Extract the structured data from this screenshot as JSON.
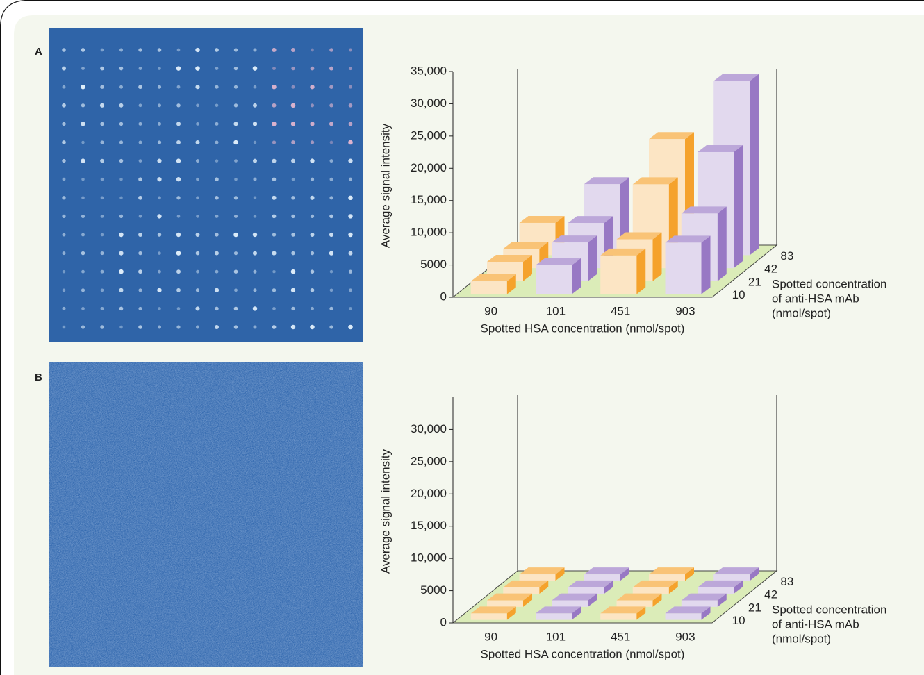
{
  "chart_data": [
    {
      "type": "bar3d",
      "panel_label": "A",
      "ylabel": "Average signal intensity",
      "xlabel": "Spotted HSA concentration (nmol/spot)",
      "depth_label": [
        "Spotted concentration",
        "of anti-HSA mAb",
        "(nmol/spot)"
      ],
      "categories": [
        "90",
        "101",
        "451",
        "903"
      ],
      "depth_categories": [
        "10",
        "21",
        "42",
        "83"
      ],
      "colors": [
        "#f5a22c",
        "#9878c4",
        "#f5a22c",
        "#9878c4"
      ],
      "values": [
        [
          2000,
          4500,
          6000,
          8000
        ],
        [
          3000,
          6000,
          6500,
          10500
        ],
        [
          3000,
          7000,
          13000,
          18000
        ],
        [
          5000,
          11000,
          18000,
          27000
        ]
      ],
      "ylim": [
        0,
        35000
      ],
      "yticks": [
        0,
        5000,
        {
          "value": 10000,
          "label": "10,000"
        },
        {
          "value": 15000,
          "label": "15,000"
        },
        {
          "value": 20000,
          "label": "20,000"
        },
        {
          "value": 25000,
          "label": "25,000"
        },
        {
          "value": 30000,
          "label": "30,000"
        },
        {
          "value": 35000,
          "label": "35,000"
        }
      ]
    },
    {
      "type": "bar3d",
      "panel_label": "B",
      "ylabel": "Average signal intensity",
      "xlabel": "Spotted HSA concentration (nmol/spot)",
      "depth_label": [
        "Spotted concentration",
        "of anti-HSA mAb",
        "(nmol/spot)"
      ],
      "categories": [
        "90",
        "101",
        "451",
        "903"
      ],
      "depth_categories": [
        "10",
        "21",
        "42",
        "83"
      ],
      "colors": [
        "#f5a22c",
        "#9878c4",
        "#f5a22c",
        "#9878c4"
      ],
      "values": [
        [
          1000,
          1000,
          1000,
          1000
        ],
        [
          1000,
          1000,
          1000,
          1000
        ],
        [
          1000,
          1000,
          1000,
          1000
        ],
        [
          1000,
          1000,
          1000,
          1000
        ]
      ],
      "ylim": [
        0,
        35000
      ],
      "yticks": [
        0,
        5000,
        {
          "value": 10000,
          "label": "10,000"
        },
        {
          "value": 15000,
          "label": "15,000"
        },
        {
          "value": 20000,
          "label": "20,000"
        },
        {
          "value": 25000,
          "label": "25,000"
        },
        {
          "value": 30000,
          "label": "30,000"
        }
      ]
    }
  ]
}
